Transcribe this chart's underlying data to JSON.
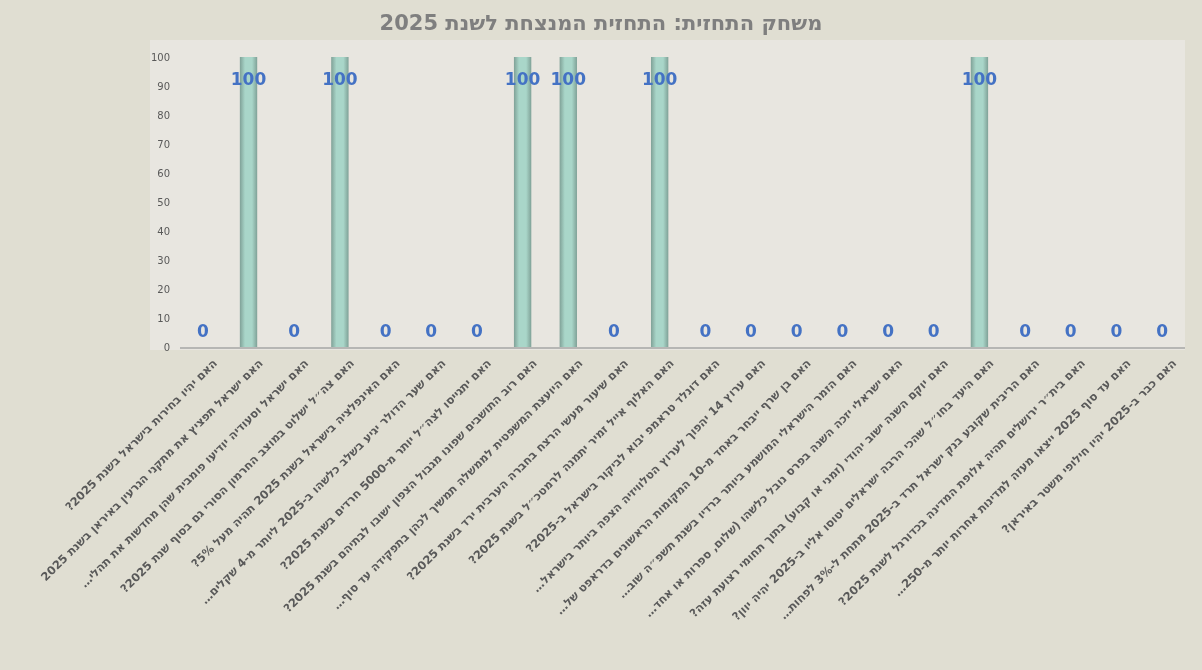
{
  "chart_data": {
    "type": "bar",
    "title": "משחק התחזית: התחזית המנצחת לשנת 2025",
    "categories": [
      "האם יהיו בחירות בישראל בשנת 2025?",
      "האם ישראל תפציץ את מתקני הגרעין באיראן בשנת 2025",
      "האם ישראל וסעודיה יודיעו פומבית שהן מחדשות את תהלי…",
      "האם צה״ל ישלוט במוצב החרמון הסורי גם בסוף שנת 2025?",
      "האם האינפלציה בישראל בשנת 2025 תהיה מעל 5%?",
      "האם שער הדולר יגיע בשלב כלשהו ב-2025 ליותר מ-4 שקלים…",
      "האם יתגייסו לצה״ל יותר מ-5000 חרדים בשנת 2025?",
      "האם רוב התושבים שפונו מגבול הצפון ישובו לבתיהם בשנת 2025?",
      "האם היועצת המשפטית לממשלה תמשיך לכהן בתפקידה עד סוף…",
      "האם שיעור מעשי הרצח בחברה הערבית ירד בשנת 2025?",
      "האם האלוף אייל זמיר יתמנה לרמטכ״ל בשנת 2025?",
      "האם דונלד טראמפ יבוא לביקור בישראל ב-2025?",
      "האם ערוץ 14 יהפוך לערוץ הטלוויזיה הצפה ביותר בישראל…",
      "האם בן שרף ייבחר באחד מ-10 המקומות הראשונים בדראפט של…",
      "האם הזמר הישראלי המושמע ביותר ברדיו בשנת תשפ״ה שוב…",
      "האם ישראלי יזכה השנה בפרס נובל כלשהו (שלום, ספרות או אחד…",
      "האם יוקם השנה ישוב יהודי (זמני או קבוע) בתוך תחומי רצועת עזה?",
      "האם היעד בחו״ל שהכי הרבה ישראלים יטוסו אליו ב-2025 יהיה יוון?",
      "האם הריבית שקובע בנק ישראל תרד ב-2025 מתחת ל-3% לפחות…",
      "האם בית״ר ירושלים תהיה אלופת המדינה בכדורגל לשנת 2025?",
      "האם עד סוף 2025 ייצאו מעזה למדינות אחרות יותר מ-250…",
      "האם כבר ב-2025 יהיו חילופי משטר באיראן?"
    ],
    "values": [
      0,
      100,
      0,
      100,
      0,
      0,
      0,
      100,
      100,
      0,
      100,
      0,
      0,
      0,
      0,
      0,
      0,
      100,
      0,
      0,
      0,
      0
    ],
    "color": "#a9d6c9",
    "ylim": [
      0,
      100
    ],
    "yticks": [
      0,
      10,
      20,
      30,
      40,
      50,
      60,
      70,
      80,
      90,
      100
    ],
    "grid": false,
    "data_labels": true
  }
}
